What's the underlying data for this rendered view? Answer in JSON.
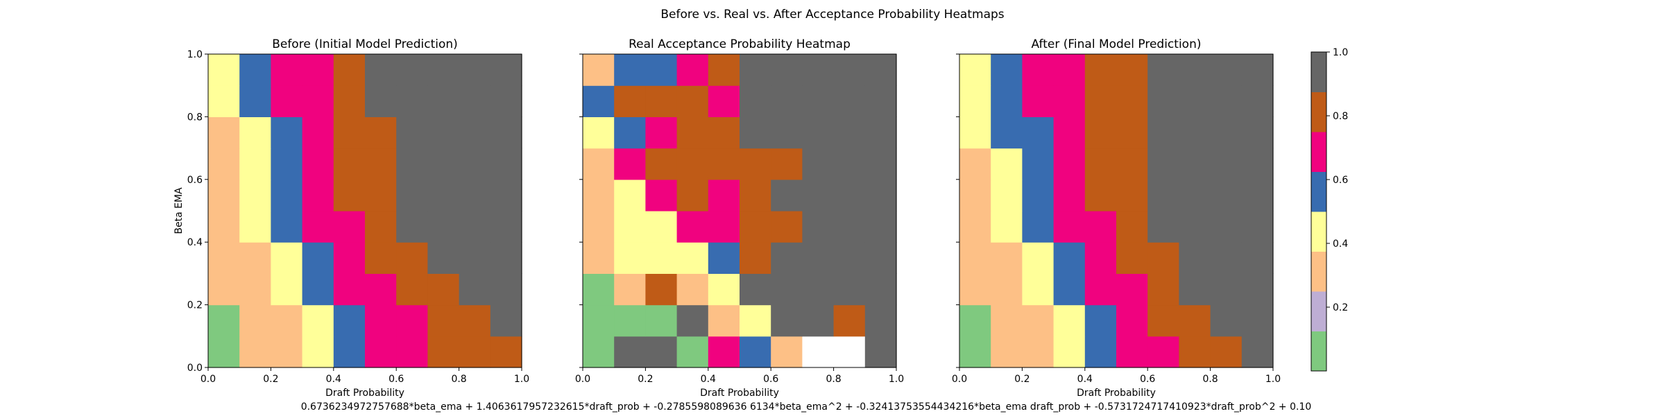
{
  "suptitle": "Before vs. Real vs. After Acceptance Probability Heatmaps",
  "formula": "0.6736234972757688*beta_ema + 1.4063617957232615*draft_prob + -0.2785598089636 6134*beta_ema^2 + -0.32413753554434216*beta_ema draft_prob + -0.5731724717410923*draft_prob^2 + 0.10",
  "colormap": {
    "name": "Accent",
    "colors": [
      "#7fc97f",
      "#beaed4",
      "#fdc086",
      "#ffff99",
      "#386cb0",
      "#f0027f",
      "#bf5b17",
      "#666666"
    ],
    "vmin": 0,
    "vmax": 1
  },
  "colorbar": {
    "ticks": [
      "0.2",
      "0.4",
      "0.6",
      "0.8",
      "1.0"
    ],
    "tick_values": [
      0.2,
      0.4,
      0.6,
      0.8,
      1.0
    ]
  },
  "chart_data": [
    {
      "type": "heatmap",
      "title": "Before (Initial Model Prediction)",
      "xlabel": "Draft Probability",
      "ylabel": "Beta EMA",
      "xlim": [
        0,
        1
      ],
      "ylim": [
        0,
        1
      ],
      "xticks": [
        "0.0",
        "0.2",
        "0.4",
        "0.6",
        "0.8",
        "1.0"
      ],
      "yticks": [
        "0.0",
        "0.2",
        "0.4",
        "0.6",
        "0.8",
        "1.0"
      ],
      "x_bins": [
        0.0,
        0.1,
        0.2,
        0.3,
        0.4,
        0.5,
        0.6,
        0.7,
        0.8,
        0.9,
        1.0
      ],
      "y_bins": [
        0.0,
        0.1,
        0.2,
        0.3,
        0.4,
        0.5,
        0.6,
        0.7,
        0.8,
        0.9,
        1.0
      ],
      "values": [
        [
          0.1,
          0.25,
          0.35,
          0.45,
          0.55,
          0.65,
          0.65,
          0.75,
          0.75,
          0.75
        ],
        [
          0.1,
          0.25,
          0.35,
          0.45,
          0.55,
          0.65,
          0.65,
          0.75,
          0.75,
          0.95
        ],
        [
          0.25,
          0.35,
          0.45,
          0.55,
          0.65,
          0.65,
          0.75,
          0.75,
          0.95,
          0.95
        ],
        [
          0.25,
          0.35,
          0.45,
          0.55,
          0.65,
          0.75,
          0.75,
          0.95,
          0.95,
          0.95
        ],
        [
          0.25,
          0.45,
          0.55,
          0.65,
          0.65,
          0.75,
          0.95,
          0.95,
          0.95,
          0.95
        ],
        [
          0.35,
          0.45,
          0.55,
          0.65,
          0.75,
          0.75,
          0.95,
          0.95,
          0.95,
          0.95
        ],
        [
          0.35,
          0.45,
          0.55,
          0.65,
          0.75,
          0.75,
          0.95,
          0.95,
          0.95,
          0.95
        ],
        [
          0.35,
          0.45,
          0.55,
          0.65,
          0.75,
          0.75,
          0.95,
          0.95,
          0.95,
          0.95
        ],
        [
          0.45,
          0.55,
          0.65,
          0.65,
          0.75,
          0.95,
          0.95,
          0.95,
          0.95,
          0.95
        ],
        [
          0.45,
          0.55,
          0.65,
          0.65,
          0.75,
          0.95,
          0.95,
          0.95,
          0.95,
          0.95
        ]
      ]
    },
    {
      "type": "heatmap",
      "title": "Real Acceptance Probability Heatmap",
      "xlabel": "Draft Probability",
      "ylabel": "",
      "xlim": [
        0,
        1
      ],
      "ylim": [
        0,
        1
      ],
      "xticks": [
        "0.0",
        "0.2",
        "0.4",
        "0.6",
        "0.8",
        "1.0"
      ],
      "yticks": [
        "",
        "",
        "",
        "",
        "",
        ""
      ],
      "x_bins": [
        0.0,
        0.1,
        0.2,
        0.3,
        0.4,
        0.5,
        0.6,
        0.7,
        0.8,
        0.9,
        1.0
      ],
      "y_bins": [
        0.0,
        0.1,
        0.2,
        0.3,
        0.4,
        0.5,
        0.6,
        0.7,
        0.8,
        0.9,
        1.0
      ],
      "values": [
        [
          0.1,
          0.95,
          0.95,
          0.1,
          0.65,
          0.55,
          0.25,
          null,
          null,
          0.95
        ],
        [
          0.1,
          0.1,
          0.1,
          0.95,
          0.35,
          0.45,
          0.95,
          0.95,
          0.75,
          0.95
        ],
        [
          0.1,
          0.25,
          0.75,
          0.35,
          0.45,
          0.95,
          0.95,
          0.95,
          0.95,
          0.95
        ],
        [
          0.25,
          0.45,
          0.45,
          0.45,
          0.55,
          0.75,
          0.95,
          0.95,
          0.95,
          0.95
        ],
        [
          0.35,
          0.45,
          0.45,
          0.65,
          0.65,
          0.75,
          0.75,
          0.95,
          0.95,
          0.95
        ],
        [
          0.35,
          0.45,
          0.65,
          0.75,
          0.65,
          0.75,
          0.95,
          0.95,
          0.95,
          0.95
        ],
        [
          0.35,
          0.65,
          0.75,
          0.75,
          0.75,
          0.75,
          0.75,
          0.95,
          0.95,
          0.95
        ],
        [
          0.45,
          0.55,
          0.65,
          0.75,
          0.75,
          0.95,
          0.95,
          0.95,
          0.95,
          0.95
        ],
        [
          0.55,
          0.75,
          0.75,
          0.75,
          0.65,
          0.95,
          0.95,
          0.95,
          0.95,
          0.95
        ],
        [
          0.25,
          0.55,
          0.55,
          0.65,
          0.75,
          0.95,
          0.95,
          0.95,
          0.95,
          0.95
        ]
      ]
    },
    {
      "type": "heatmap",
      "title": "After (Final Model Prediction)",
      "xlabel": "Draft Probability",
      "ylabel": "",
      "xlim": [
        0,
        1
      ],
      "ylim": [
        0,
        1
      ],
      "xticks": [
        "0.0",
        "0.2",
        "0.4",
        "0.6",
        "0.8",
        "1.0"
      ],
      "yticks": [
        "",
        "",
        "",
        "",
        "",
        ""
      ],
      "x_bins": [
        0.0,
        0.1,
        0.2,
        0.3,
        0.4,
        0.5,
        0.6,
        0.7,
        0.8,
        0.9,
        1.0
      ],
      "y_bins": [
        0.0,
        0.1,
        0.2,
        0.3,
        0.4,
        0.5,
        0.6,
        0.7,
        0.8,
        0.9,
        1.0
      ],
      "values": [
        [
          0.1,
          0.25,
          0.35,
          0.45,
          0.55,
          0.65,
          0.65,
          0.75,
          0.75,
          0.95
        ],
        [
          0.1,
          0.25,
          0.35,
          0.45,
          0.55,
          0.65,
          0.75,
          0.75,
          0.95,
          0.95
        ],
        [
          0.25,
          0.35,
          0.45,
          0.55,
          0.65,
          0.65,
          0.75,
          0.95,
          0.95,
          0.95
        ],
        [
          0.25,
          0.35,
          0.45,
          0.55,
          0.65,
          0.75,
          0.75,
          0.95,
          0.95,
          0.95
        ],
        [
          0.35,
          0.45,
          0.55,
          0.65,
          0.65,
          0.75,
          0.95,
          0.95,
          0.95,
          0.95
        ],
        [
          0.35,
          0.45,
          0.55,
          0.65,
          0.75,
          0.75,
          0.95,
          0.95,
          0.95,
          0.95
        ],
        [
          0.35,
          0.45,
          0.55,
          0.65,
          0.75,
          0.75,
          0.95,
          0.95,
          0.95,
          0.95
        ],
        [
          0.45,
          0.55,
          0.55,
          0.65,
          0.75,
          0.75,
          0.95,
          0.95,
          0.95,
          0.95
        ],
        [
          0.45,
          0.55,
          0.65,
          0.65,
          0.75,
          0.75,
          0.95,
          0.95,
          0.95,
          0.95
        ],
        [
          0.45,
          0.55,
          0.65,
          0.65,
          0.75,
          0.75,
          0.95,
          0.95,
          0.95,
          0.95
        ]
      ]
    }
  ]
}
